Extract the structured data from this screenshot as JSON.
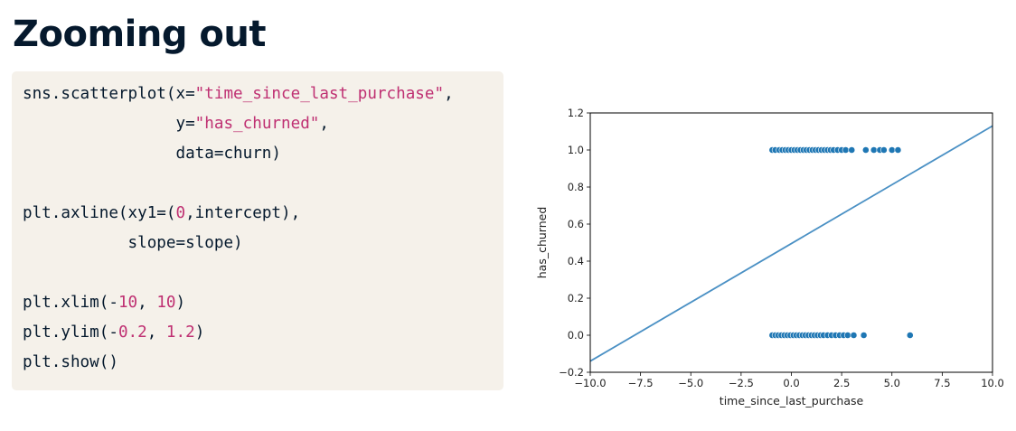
{
  "title": "Zooming out",
  "code": {
    "lines": [
      [
        {
          "t": "sns.scatterplot(x="
        },
        {
          "t": "\"time_since_last_purchase\"",
          "k": "str"
        },
        {
          "t": ","
        }
      ],
      [
        {
          "t": "                y="
        },
        {
          "t": "\"has_churned\"",
          "k": "str"
        },
        {
          "t": ","
        }
      ],
      [
        {
          "t": "                data=churn)"
        }
      ],
      [
        {
          "t": ""
        }
      ],
      [
        {
          "t": "plt.axline(xy1=("
        },
        {
          "t": "0",
          "k": "num"
        },
        {
          "t": ",intercept),"
        }
      ],
      [
        {
          "t": "           slope=slope)"
        }
      ],
      [
        {
          "t": ""
        }
      ],
      [
        {
          "t": "plt.xlim(-"
        },
        {
          "t": "10",
          "k": "num"
        },
        {
          "t": ", "
        },
        {
          "t": "10",
          "k": "num"
        },
        {
          "t": ")"
        }
      ],
      [
        {
          "t": "plt.ylim(-"
        },
        {
          "t": "0.2",
          "k": "num"
        },
        {
          "t": ", "
        },
        {
          "t": "1.2",
          "k": "num"
        },
        {
          "t": ")"
        }
      ],
      [
        {
          "t": "plt.show()"
        }
      ]
    ]
  },
  "colors": {
    "point": "#1f77b4",
    "line": "#4a90c4",
    "title": "#05192d",
    "code_bg": "#f5f1ea",
    "code_accent": "#bf3072"
  },
  "chart_data": {
    "type": "scatter",
    "xlabel": "time_since_last_purchase",
    "ylabel": "has_churned",
    "xlim": [
      -10,
      10
    ],
    "ylim": [
      -0.2,
      1.2
    ],
    "xticks": [
      "−10.0",
      "−7.5",
      "−5.0",
      "−2.5",
      "0.0",
      "2.5",
      "5.0",
      "7.5",
      "10.0"
    ],
    "xtick_values": [
      -10,
      -7.5,
      -5,
      -2.5,
      0,
      2.5,
      5,
      7.5,
      10
    ],
    "yticks": [
      "−0.2",
      "0.0",
      "0.2",
      "0.4",
      "0.6",
      "0.8",
      "1.0",
      "1.2"
    ],
    "ytick_values": [
      -0.2,
      0,
      0.2,
      0.4,
      0.6,
      0.8,
      1.0,
      1.2
    ],
    "grid": false,
    "points_y1": [
      -0.95,
      -0.8,
      -0.6,
      -0.45,
      -0.3,
      -0.15,
      0.0,
      0.15,
      0.3,
      0.45,
      0.6,
      0.75,
      0.9,
      1.05,
      1.2,
      1.35,
      1.5,
      1.65,
      1.8,
      1.95,
      2.1,
      2.3,
      2.5,
      2.7,
      3.0,
      3.7,
      4.1,
      4.4,
      4.6,
      5.0,
      5.3
    ],
    "points_y0": [
      -0.95,
      -0.8,
      -0.65,
      -0.5,
      -0.35,
      -0.2,
      -0.05,
      0.1,
      0.25,
      0.4,
      0.55,
      0.7,
      0.85,
      1.0,
      1.15,
      1.3,
      1.45,
      1.6,
      1.8,
      2.0,
      2.2,
      2.4,
      2.6,
      2.8,
      3.1,
      3.6,
      5.9
    ],
    "regression_line": {
      "x1": -10,
      "y1": -0.14,
      "x2": 10,
      "y2": 1.13
    }
  }
}
